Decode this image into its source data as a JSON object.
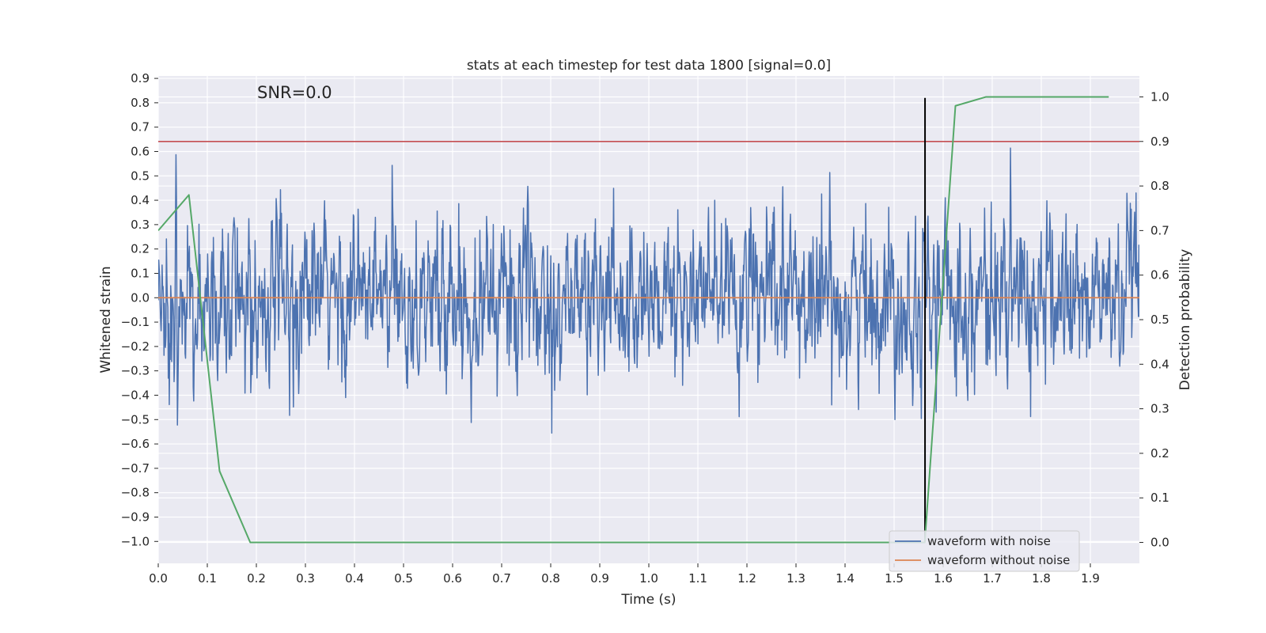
{
  "chart_data": {
    "type": "line",
    "title": "stats at each timestep for test data 1800 [signal=0.0]",
    "annotation": "SNR=0.0",
    "xlabel": "Time (s)",
    "ylabel": "Whitened strain",
    "ylabel_right": "Detection probability",
    "xlim": [
      0.0,
      2.0
    ],
    "ylim": [
      -1.09,
      0.91
    ],
    "ylim_right": [
      -0.047,
      1.047
    ],
    "x_ticks": [
      "0.0",
      "0.1",
      "0.2",
      "0.3",
      "0.4",
      "0.5",
      "0.6",
      "0.7",
      "0.8",
      "0.9",
      "1.0",
      "1.1",
      "1.2",
      "1.3",
      "1.4",
      "1.5",
      "1.6",
      "1.7",
      "1.8",
      "1.9"
    ],
    "y_ticks": [
      "0.9",
      "0.8",
      "0.7",
      "0.6",
      "0.5",
      "0.4",
      "0.3",
      "0.2",
      "0.1",
      "0.0",
      "−0.1",
      "−0.2",
      "−0.3",
      "−0.4",
      "−0.5",
      "−0.6",
      "−0.7",
      "−0.8",
      "−0.9",
      "−1.0"
    ],
    "y_ticks_right": [
      "0.0",
      "0.1",
      "0.2",
      "0.3",
      "0.4",
      "0.5",
      "0.6",
      "0.7",
      "0.8",
      "0.9",
      "1.0"
    ],
    "grid": true,
    "legend_position": "lower-right",
    "series": [
      {
        "name": "waveform with noise",
        "color": "#4c72b0",
        "noise_amplitude": 0.2,
        "noise_range": [
          -1.0,
          0.82
        ],
        "x_range": [
          0.0,
          2.0
        ],
        "samples": 2048
      },
      {
        "name": "waveform without noise",
        "color": "#dd8452",
        "constant": 0.0
      }
    ],
    "threshold": {
      "value": 0.9,
      "axis": "right",
      "color": "#c44e52"
    },
    "marker_time": {
      "x": 1.563,
      "color": "#000000",
      "y_range": [
        -1.0,
        0.82
      ]
    },
    "probability": {
      "axis": "right",
      "color": "#55a868",
      "x": [
        0.0,
        0.0625,
        0.125,
        0.1875,
        0.25,
        0.3125,
        0.375,
        0.4375,
        0.5,
        0.5625,
        0.625,
        0.6875,
        0.75,
        0.8125,
        0.875,
        0.9375,
        1.0,
        1.0625,
        1.125,
        1.1875,
        1.25,
        1.3125,
        1.375,
        1.4375,
        1.5,
        1.5625,
        1.625,
        1.6875,
        1.75,
        1.8125,
        1.875,
        1.9375
      ],
      "y": [
        0.7,
        0.78,
        0.16,
        0.0,
        0.0,
        0.0,
        0.0,
        0.0,
        0.0,
        0.0,
        0.0,
        0.0,
        0.0,
        0.0,
        0.0,
        0.0,
        0.0,
        0.0,
        0.0,
        0.0,
        0.0,
        0.0,
        0.0,
        0.0,
        0.0,
        0.0,
        0.98,
        1.0,
        1.0,
        1.0,
        1.0,
        1.0
      ]
    }
  }
}
